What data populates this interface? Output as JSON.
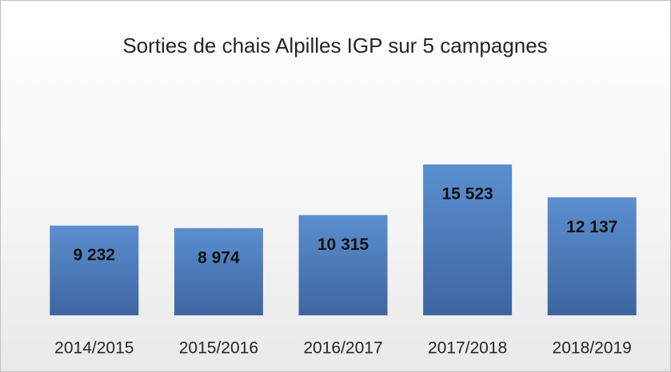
{
  "chart_data": {
    "type": "bar",
    "title": "Sorties de chais Alpilles IGP sur 5 campagnes",
    "categories": [
      "2014/2015",
      "2015/2016",
      "2016/2017",
      "2017/2018",
      "2018/2019"
    ],
    "values": [
      9232,
      8974,
      10315,
      15523,
      12137
    ],
    "value_labels": [
      "9 232",
      "8 974",
      "10 315",
      "15 523",
      "12 137"
    ],
    "color": "#4f81bd"
  }
}
